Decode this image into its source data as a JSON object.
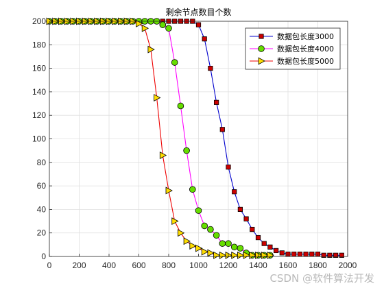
{
  "watermark": "CSDN @软件算法开发",
  "chart_data": {
    "type": "line",
    "title": "剩余节点数目个数",
    "xlabel": "",
    "ylabel": "",
    "xlim": [
      0,
      2000
    ],
    "ylim": [
      0,
      200
    ],
    "xticks": [
      0,
      200,
      400,
      600,
      800,
      1000,
      1200,
      1400,
      1600,
      1800,
      2000
    ],
    "yticks": [
      0,
      20,
      40,
      60,
      80,
      100,
      120,
      140,
      160,
      180,
      200
    ],
    "grid": true,
    "legend_position": "top-right",
    "series": [
      {
        "name": "数据包长度3000",
        "color": "#0000cc",
        "marker": "square",
        "marker_fill": "#cc0000",
        "x": [
          0,
          40,
          80,
          120,
          160,
          200,
          240,
          280,
          320,
          360,
          400,
          440,
          480,
          520,
          560,
          600,
          640,
          680,
          720,
          760,
          800,
          840,
          880,
          920,
          960,
          1000,
          1040,
          1080,
          1120,
          1160,
          1200,
          1240,
          1280,
          1320,
          1360,
          1400,
          1440,
          1480,
          1520,
          1560,
          1600,
          1640,
          1680,
          1720,
          1760,
          1800,
          1840,
          1880,
          1920,
          1960
        ],
        "y": [
          200,
          200,
          200,
          200,
          200,
          200,
          200,
          200,
          200,
          200,
          200,
          200,
          200,
          200,
          200,
          200,
          200,
          200,
          200,
          200,
          200,
          200,
          200,
          200,
          200,
          197,
          185,
          160,
          131,
          108,
          76,
          55,
          40,
          32,
          23,
          16,
          11,
          8,
          5,
          3,
          2,
          2,
          2,
          2,
          2,
          2,
          1,
          1,
          1,
          1
        ]
      },
      {
        "name": "数据包长度4000",
        "color": "#ff00ff",
        "marker": "circle",
        "marker_fill": "#66dd00",
        "x": [
          0,
          40,
          80,
          120,
          160,
          200,
          240,
          280,
          320,
          360,
          400,
          440,
          480,
          520,
          560,
          600,
          640,
          680,
          720,
          760,
          800,
          840,
          880,
          920,
          960,
          1000,
          1040,
          1080,
          1120,
          1160,
          1200,
          1240,
          1280,
          1320,
          1360,
          1400,
          1440,
          1480
        ],
        "y": [
          200,
          200,
          200,
          200,
          200,
          200,
          200,
          200,
          200,
          200,
          200,
          200,
          200,
          200,
          200,
          200,
          200,
          200,
          200,
          197,
          194,
          165,
          128,
          90,
          57,
          39,
          26,
          23,
          18,
          11,
          11,
          8,
          7,
          3,
          1,
          1,
          1,
          1
        ]
      },
      {
        "name": "数据包长度5000",
        "color": "#ee0000",
        "marker": "triangle-right",
        "marker_fill": "#ffdd00",
        "x": [
          0,
          40,
          80,
          120,
          160,
          200,
          240,
          280,
          320,
          360,
          400,
          440,
          480,
          520,
          560,
          600,
          640,
          680,
          720,
          760,
          800,
          840,
          880,
          920,
          960,
          1000,
          1040,
          1080,
          1120,
          1160,
          1200,
          1240,
          1280,
          1320,
          1360,
          1400,
          1440,
          1480
        ],
        "y": [
          200,
          200,
          200,
          200,
          200,
          200,
          200,
          200,
          200,
          200,
          200,
          200,
          200,
          200,
          200,
          198,
          194,
          176,
          135,
          86,
          56,
          30,
          20,
          13,
          9,
          7,
          4,
          3,
          1,
          1,
          1,
          1,
          1,
          1,
          1,
          1,
          1,
          1
        ]
      }
    ]
  }
}
